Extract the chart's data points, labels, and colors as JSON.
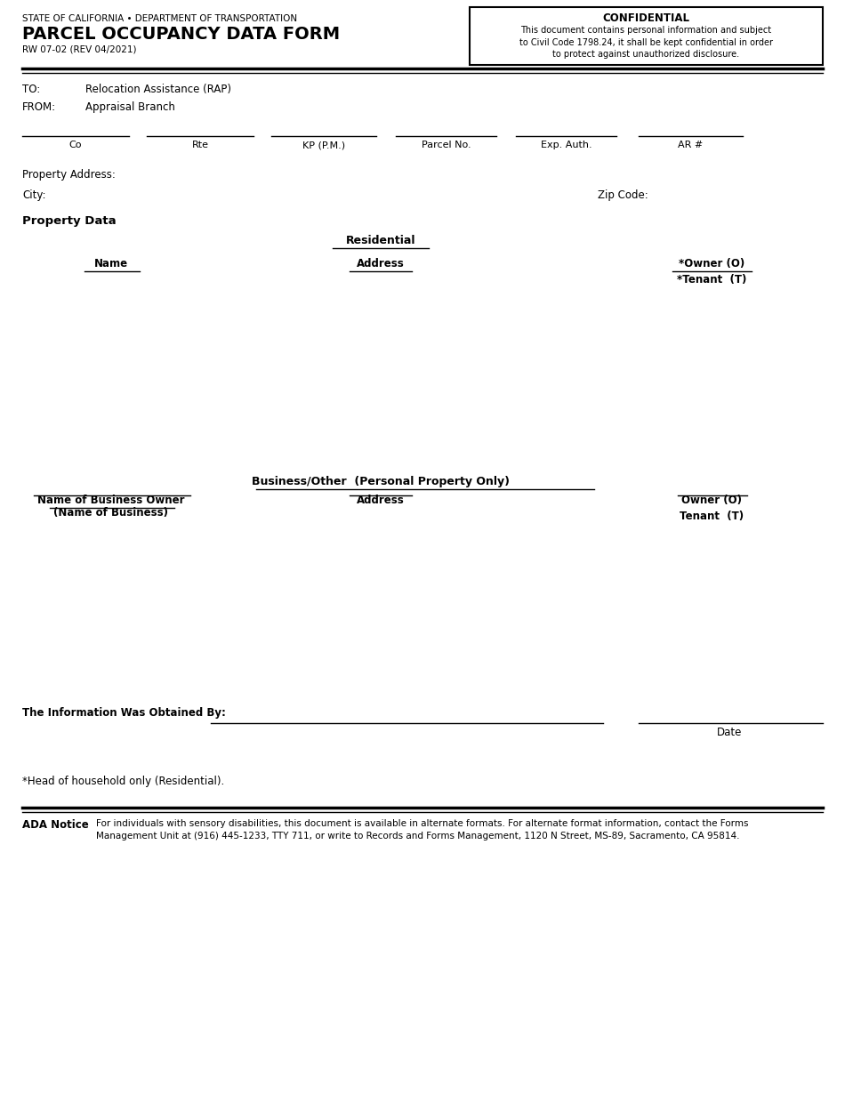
{
  "bg_color": "#ffffff",
  "header_line1": "STATE OF CALIFORNIA • DEPARTMENT OF TRANSPORTATION",
  "header_title": "PARCEL OCCUPANCY DATA FORM",
  "header_rev": "RW 07-02 (REV 04/2021)",
  "confidential_title": "CONFIDENTIAL",
  "confidential_text": "This document contains personal information and subject\nto Civil Code 1798.24, it shall be kept confidential in order\nto protect against unauthorized disclosure.",
  "to_label": "TO:",
  "to_value": "Relocation Assistance (RAP)",
  "from_label": "FROM:",
  "from_value": "Appraisal Branch",
  "field_labels": [
    "Co",
    "Rte",
    "KP (P.M.)",
    "Parcel No.",
    "Exp. Auth.",
    "AR #"
  ],
  "field_starts": [
    25,
    165,
    305,
    445,
    580,
    718
  ],
  "field_ends": [
    145,
    285,
    423,
    558,
    693,
    835
  ],
  "property_address_label": "Property Address:",
  "city_label": "City:",
  "zip_label": "Zip Code:",
  "property_data_label": "Property Data",
  "residential_label": "Residential",
  "col_name": "Name",
  "col_address": "Address",
  "col_owner_tenant": "*Owner (O)\n*Tenant  (T)",
  "business_label": "Business/Other  (Personal Property Only)",
  "biz_name_line1": "Name of Business Owner",
  "biz_name_line2": "(Name of Business)",
  "biz_address_label": "Address",
  "biz_owner_label": "Owner (O)\nTenant  (T)",
  "obtained_label": "The Information Was Obtained By:",
  "date_label": "Date",
  "household_note": "*Head of household only (Residential).",
  "ada_bold": "ADA Notice",
  "ada_text": "For individuals with sensory disabilities, this document is available in alternate formats. For alternate format information, contact the Forms\nManagement Unit at (916) 445-1233, TTY 711, or write to Records and Forms Management, 1120 N Street, MS-89, Sacramento, CA 95814."
}
